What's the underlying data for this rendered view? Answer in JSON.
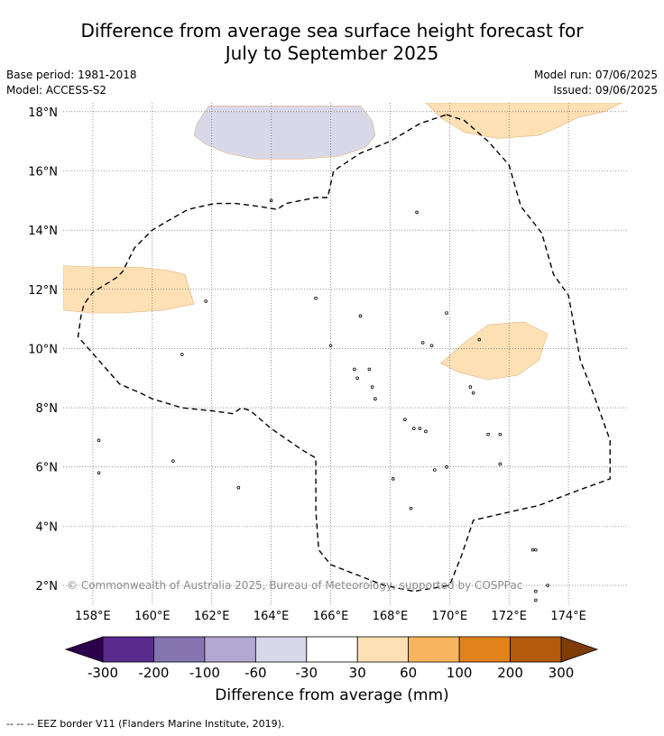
{
  "header": {
    "title_line1": "Difference from average sea surface height forecast for",
    "title_line2": "July to September 2025",
    "base_period": "Base period: 1981-2018",
    "model": "Model: ACCESS-S2",
    "model_run": "Model run: 07/06/2025",
    "issued": "Issued: 09/06/2025"
  },
  "map": {
    "lon_range": [
      157,
      176
    ],
    "lat_range": [
      1.3,
      18.3
    ],
    "lon_ticks": [
      158,
      160,
      162,
      164,
      166,
      168,
      170,
      172,
      174
    ],
    "lon_tick_labels": [
      "158°E",
      "160°E",
      "162°E",
      "164°E",
      "166°E",
      "168°E",
      "170°E",
      "172°E",
      "174°E"
    ],
    "lat_ticks": [
      2,
      4,
      6,
      8,
      10,
      12,
      14,
      16,
      18
    ],
    "lat_tick_labels": [
      "2°N",
      "4°N",
      "6°N",
      "8°N",
      "10°N",
      "12°N",
      "14°N",
      "16°N",
      "18°N"
    ],
    "grid": true,
    "copyright": "© Commonwealth of Australia 2025, Bureau of Meteorology, supported by COSPPac",
    "anomaly_regions": [
      {
        "category": "-60 to -30",
        "color": "#d8d8e8",
        "points": [
          [
            161.9,
            18.2
          ],
          [
            163.0,
            18.2
          ],
          [
            166.0,
            18.2
          ],
          [
            167.0,
            18.2
          ],
          [
            167.4,
            17.7
          ],
          [
            167.5,
            17.2
          ],
          [
            167.2,
            16.8
          ],
          [
            166.3,
            16.5
          ],
          [
            165.0,
            16.4
          ],
          [
            163.5,
            16.4
          ],
          [
            162.5,
            16.6
          ],
          [
            161.8,
            16.9
          ],
          [
            161.4,
            17.2
          ],
          [
            161.5,
            17.6
          ]
        ]
      },
      {
        "category": "30 to 60",
        "color": "#fde0b4",
        "points": [
          [
            169.2,
            18.3
          ],
          [
            175.8,
            18.3
          ],
          [
            175.2,
            18.0
          ],
          [
            174.3,
            17.8
          ],
          [
            173.5,
            17.4
          ],
          [
            173.0,
            17.2
          ],
          [
            171.6,
            17.1
          ],
          [
            170.5,
            17.3
          ],
          [
            169.7,
            17.8
          ]
        ]
      },
      {
        "category": "30 to 60",
        "color": "#fde0b4",
        "points": [
          [
            157.0,
            12.8
          ],
          [
            158.0,
            12.75
          ],
          [
            159.5,
            12.75
          ],
          [
            160.5,
            12.65
          ],
          [
            161.1,
            12.5
          ],
          [
            161.4,
            11.5
          ],
          [
            160.4,
            11.3
          ],
          [
            159.0,
            11.2
          ],
          [
            157.9,
            11.2
          ],
          [
            157.0,
            11.3
          ]
        ]
      },
      {
        "category": "30 to 60",
        "color": "#fde0b4",
        "points": [
          [
            169.7,
            9.5
          ],
          [
            170.5,
            10.2
          ],
          [
            171.3,
            10.8
          ],
          [
            172.5,
            10.9
          ],
          [
            173.3,
            10.5
          ],
          [
            173.0,
            9.6
          ],
          [
            172.3,
            9.1
          ],
          [
            171.3,
            8.95
          ],
          [
            170.3,
            9.2
          ]
        ]
      }
    ],
    "eez_border": [
      [
        169.9,
        17.9
      ],
      [
        170.5,
        17.7
      ],
      [
        171.3,
        17.0
      ],
      [
        172.0,
        16.2
      ],
      [
        172.4,
        14.8
      ],
      [
        173.1,
        13.9
      ],
      [
        173.5,
        12.5
      ],
      [
        174.0,
        11.8
      ],
      [
        174.4,
        9.6
      ],
      [
        174.9,
        8.3
      ],
      [
        175.4,
        6.9
      ],
      [
        175.4,
        5.6
      ],
      [
        174.3,
        5.2
      ],
      [
        173.0,
        4.7
      ],
      [
        172.1,
        4.5
      ],
      [
        170.8,
        4.2
      ],
      [
        170.4,
        3.0
      ],
      [
        170.0,
        2.0
      ],
      [
        168.8,
        1.8
      ],
      [
        167.8,
        2.0
      ],
      [
        166.0,
        2.7
      ],
      [
        165.6,
        3.2
      ],
      [
        165.5,
        4.5
      ],
      [
        165.5,
        6.3
      ],
      [
        165.0,
        6.6
      ],
      [
        164.0,
        7.3
      ],
      [
        163.3,
        7.9
      ],
      [
        163.0,
        8.0
      ],
      [
        162.7,
        7.8
      ],
      [
        162.0,
        7.9
      ],
      [
        161.0,
        8.0
      ],
      [
        160.0,
        8.3
      ],
      [
        159.6,
        8.5
      ],
      [
        158.9,
        8.8
      ],
      [
        157.5,
        10.4
      ],
      [
        157.6,
        11.1
      ],
      [
        157.7,
        11.5
      ],
      [
        158.0,
        11.9
      ],
      [
        158.8,
        12.4
      ],
      [
        159.0,
        12.6
      ],
      [
        159.4,
        13.4
      ],
      [
        160.0,
        14.0
      ],
      [
        160.5,
        14.3
      ],
      [
        161.2,
        14.7
      ],
      [
        162.1,
        14.9
      ],
      [
        162.8,
        14.9
      ],
      [
        163.6,
        14.8
      ],
      [
        164.2,
        14.7
      ],
      [
        164.5,
        14.9
      ],
      [
        165.5,
        15.1
      ],
      [
        165.9,
        15.1
      ],
      [
        166.1,
        16.0
      ],
      [
        167.0,
        16.6
      ],
      [
        168.0,
        17.0
      ],
      [
        169.0,
        17.6
      ]
    ],
    "coastlines": [
      [
        158.2,
        6.9
      ],
      [
        162.9,
        5.3
      ],
      [
        164.0,
        15.0
      ],
      [
        168.9,
        14.6
      ],
      [
        161.8,
        11.6
      ],
      [
        165.5,
        11.7
      ],
      [
        167.0,
        11.1
      ],
      [
        169.9,
        11.2
      ],
      [
        161.0,
        9.8
      ],
      [
        166.0,
        10.1
      ],
      [
        166.8,
        9.3
      ],
      [
        167.3,
        9.3
      ],
      [
        167.4,
        8.7
      ],
      [
        167.5,
        8.3
      ],
      [
        168.5,
        7.6
      ],
      [
        168.8,
        7.3
      ],
      [
        169.0,
        7.3
      ],
      [
        169.5,
        5.9
      ],
      [
        169.9,
        6.0
      ],
      [
        168.7,
        4.6
      ],
      [
        171.3,
        7.1
      ],
      [
        171.7,
        7.1
      ],
      [
        171.7,
        6.1
      ],
      [
        168.1,
        5.6
      ],
      [
        158.2,
        5.8
      ],
      [
        172.8,
        3.2
      ],
      [
        172.9,
        3.2
      ],
      [
        173.3,
        2.0
      ],
      [
        172.9,
        1.8
      ],
      [
        172.9,
        1.5
      ],
      [
        170.7,
        8.7
      ],
      [
        170.8,
        8.5
      ],
      [
        169.2,
        7.2
      ],
      [
        166.9,
        9.0
      ],
      [
        171.0,
        10.3
      ],
      [
        169.1,
        10.2
      ],
      [
        169.4,
        10.1
      ],
      [
        160.7,
        6.2
      ]
    ]
  },
  "colorbar": {
    "title": "Difference from average (mm)",
    "tick_labels": [
      "-300",
      "-200",
      "-100",
      "-60",
      "-30",
      "30",
      "60",
      "100",
      "200",
      "300"
    ],
    "colors": [
      "#5a2a8c",
      "#8475b0",
      "#b2a9d2",
      "#d8d8e8",
      "#ffffff",
      "#fde0b4",
      "#f9b65e",
      "#e2821a",
      "#b35a0c"
    ],
    "under_color": "#2d004b",
    "over_color": "#7f3b08"
  },
  "footer": {
    "legend_line": "--  --  -- EEZ border V11 (Flanders Marine Institute, 2019)."
  }
}
